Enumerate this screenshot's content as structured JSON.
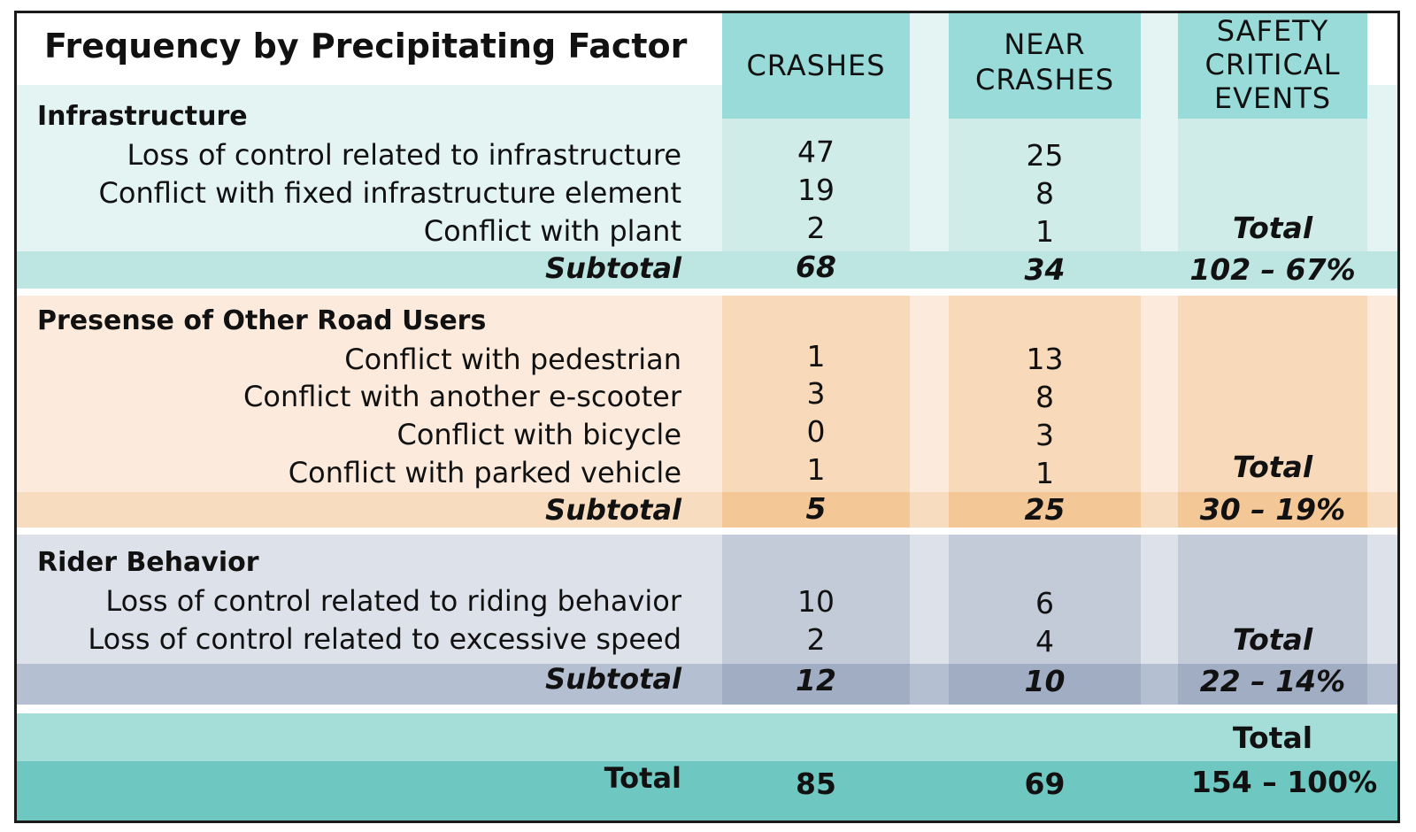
{
  "chart_data": {
    "type": "table",
    "title": "Frequency by Precipitating Factor",
    "columns": [
      "CRASHES",
      "NEAR CRASHES",
      "SAFETY CRITICAL EVENTS"
    ],
    "sections": [
      {
        "name": "Infrastructure",
        "rows": [
          {
            "label": "Loss of control related to infrastructure",
            "crashes": "47",
            "near": "25"
          },
          {
            "label": "Conflict with fixed infrastructure element",
            "crashes": "19",
            "near": "8"
          },
          {
            "label": "Conflict with plant",
            "crashes": "2",
            "near": "1"
          }
        ],
        "total_label": "Total",
        "subtotal": {
          "label": "Subtotal",
          "crashes": "68",
          "near": "34",
          "sce": "102 – 67%"
        }
      },
      {
        "name": "Presense of Other Road Users",
        "rows": [
          {
            "label": "Conflict with pedestrian",
            "crashes": "1",
            "near": "13"
          },
          {
            "label": "Conflict with another e-scooter",
            "crashes": "3",
            "near": "8"
          },
          {
            "label": "Conflict with bicycle",
            "crashes": "0",
            "near": "3"
          },
          {
            "label": "Conflict with parked vehicle",
            "crashes": "1",
            "near": "1"
          }
        ],
        "total_label": "Total",
        "subtotal": {
          "label": "Subtotal",
          "crashes": "5",
          "near": "25",
          "sce": "30 – 19%"
        }
      },
      {
        "name": "Rider Behavior",
        "rows": [
          {
            "label": "Loss of control related to riding behavior",
            "crashes": "10",
            "near": "6"
          },
          {
            "label": "Loss of control related to excessive speed",
            "crashes": "2",
            "near": "4"
          }
        ],
        "total_label": "Total",
        "subtotal": {
          "label": "Subtotal",
          "crashes": "12",
          "near": "10",
          "sce": "22 – 14%"
        }
      }
    ],
    "grand_total": {
      "label": "Total",
      "crashes": "85",
      "near": "69",
      "sce_label": "Total",
      "sce": "154 – 100%"
    }
  },
  "colors": {
    "teal_header": "#99dbd8",
    "teal_light": "#e4f4f3",
    "teal_col": "#cfece9",
    "teal_sub": "#bde5e2",
    "orange_light": "#fcebdc",
    "orange_col": "#f8d9ba",
    "orange_sub": "#f4c796",
    "gray_light": "#dde1e9",
    "gray_col": "#c3cbd9",
    "gray_sub": "#a0adc3",
    "total_light": "#a5ddd9",
    "total_dark": "#6fc7c2"
  }
}
